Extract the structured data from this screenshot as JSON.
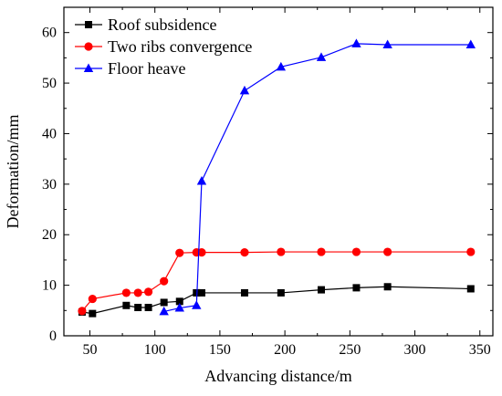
{
  "chart_data": {
    "type": "line",
    "xlabel": "Advancing distance/m",
    "ylabel": "Deformation/mm",
    "xlim": [
      30,
      360
    ],
    "ylim": [
      0,
      65
    ],
    "x_ticks": [
      50,
      100,
      150,
      200,
      250,
      300,
      350
    ],
    "y_ticks": [
      0,
      10,
      20,
      30,
      40,
      50,
      60
    ],
    "grid": false,
    "legend_position": "top-left",
    "series": [
      {
        "name": "Roof subsidence",
        "color": "#000000",
        "marker": "square",
        "x": [
          44,
          52,
          78,
          87,
          95,
          107,
          119,
          132,
          136,
          169,
          197,
          228,
          255,
          279,
          343
        ],
        "y": [
          4.7,
          4.4,
          6.0,
          5.6,
          5.6,
          6.6,
          6.8,
          8.5,
          8.5,
          8.5,
          8.5,
          9.1,
          9.5,
          9.7,
          9.3
        ]
      },
      {
        "name": "Two ribs convergence",
        "color": "#ff0000",
        "marker": "circle",
        "x": [
          44,
          52,
          78,
          87,
          95,
          107,
          119,
          132,
          136,
          169,
          197,
          228,
          255,
          279,
          343
        ],
        "y": [
          4.9,
          7.3,
          8.5,
          8.5,
          8.7,
          10.8,
          16.4,
          16.5,
          16.5,
          16.5,
          16.6,
          16.6,
          16.6,
          16.6,
          16.6
        ]
      },
      {
        "name": "Floor heave",
        "color": "#0000ff",
        "marker": "triangle",
        "x": [
          107,
          119,
          132,
          136,
          169,
          197,
          228,
          255,
          279,
          343
        ],
        "y": [
          4.8,
          5.5,
          6.0,
          30.6,
          48.5,
          53.2,
          55.1,
          57.8,
          57.6,
          57.6
        ]
      }
    ]
  }
}
